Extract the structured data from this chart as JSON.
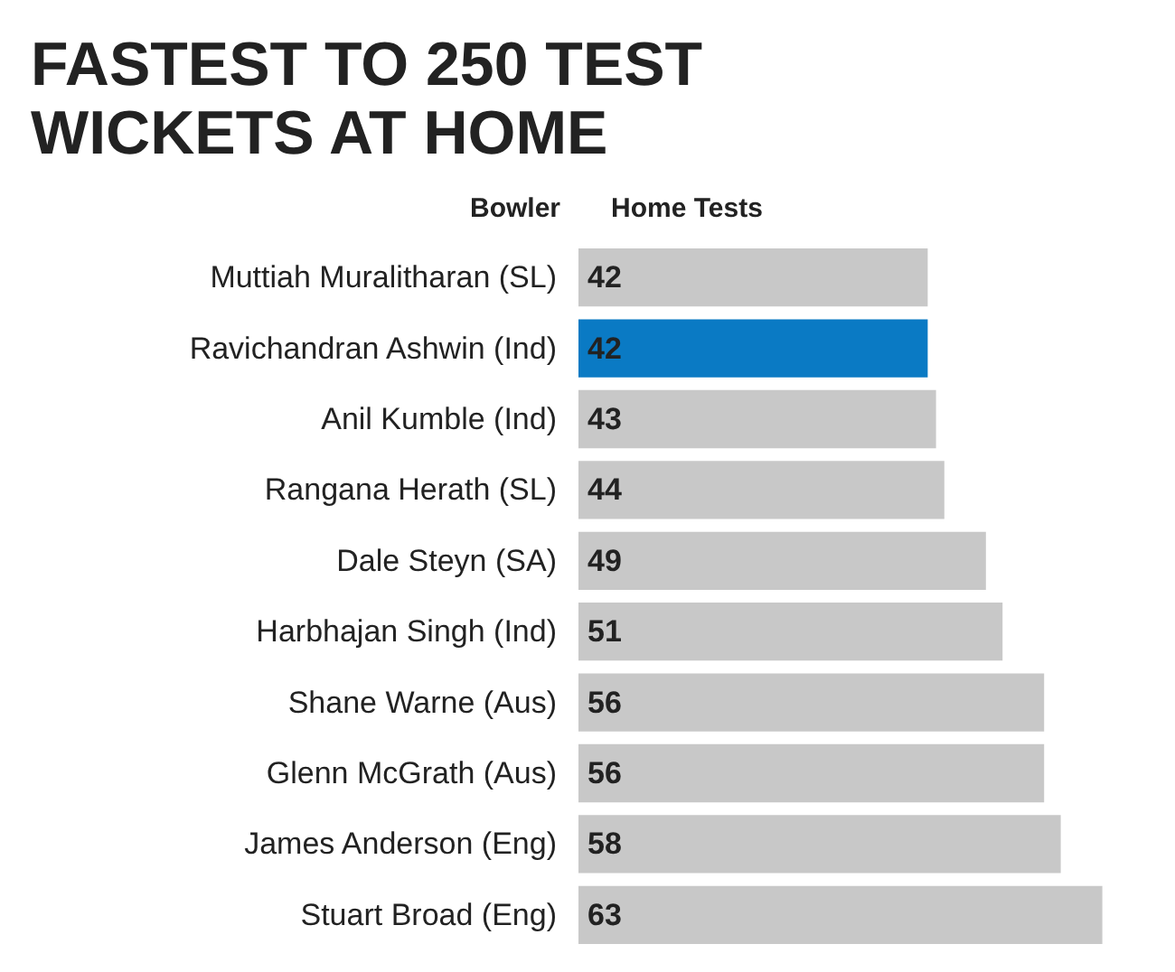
{
  "chart_data": {
    "type": "bar",
    "orientation": "horizontal",
    "title": "FASTEST TO 250 TEST WICKETS AT HOME",
    "ylabel": "Bowler",
    "xlabel": "Home Tests",
    "categories": [
      "Muttiah Muralitharan (SL)",
      "Ravichandran Ashwin (Ind)",
      "Anil Kumble (Ind)",
      "Rangana Herath (SL)",
      "Dale Steyn (SA)",
      "Harbhajan Singh (Ind)",
      "Shane Warne (Aus)",
      "Glenn McGrath (Aus)",
      "James Anderson (Eng)",
      "Stuart Broad (Eng)"
    ],
    "values": [
      42,
      42,
      43,
      44,
      49,
      51,
      56,
      56,
      58,
      63
    ],
    "colors": [
      "#c8c8c8",
      "#0a7ac4",
      "#c8c8c8",
      "#c8c8c8",
      "#c8c8c8",
      "#c8c8c8",
      "#c8c8c8",
      "#c8c8c8",
      "#c8c8c8",
      "#c8c8c8"
    ],
    "data_labels": true
  }
}
